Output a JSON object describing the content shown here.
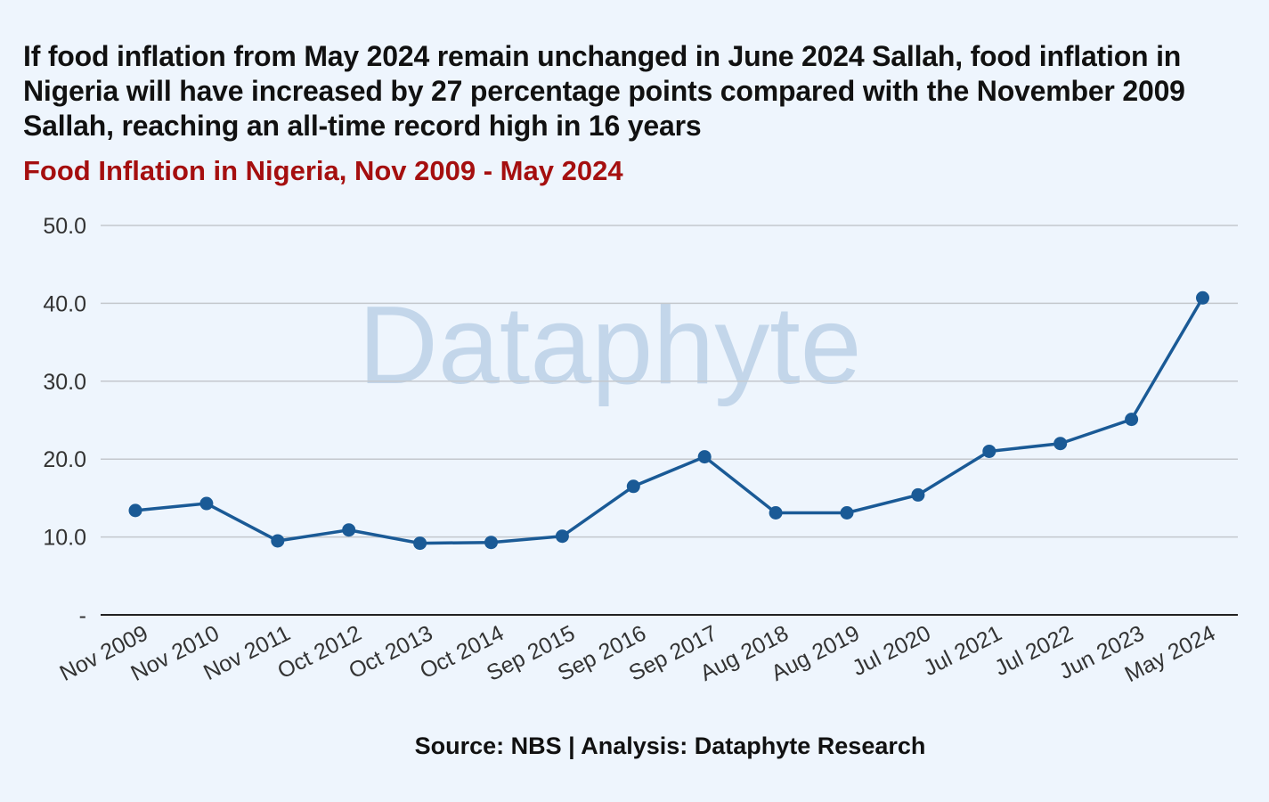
{
  "headline": "If food inflation from May 2024 remain unchanged in June 2024 Sallah, food inflation in Nigeria will have increased by 27 percentage points compared with the November 2009 Sallah, reaching an all-time record high in 16 years",
  "watermark": "Dataphyte",
  "source": "Source: NBS | Analysis: Dataphyte Research",
  "colors": {
    "line": "#1a5a96",
    "title": "#111111",
    "subtitle": "#a50f0f",
    "grid": "#c4c8cd",
    "background": "#eef5fd",
    "watermark": "#c3d6ea"
  },
  "chart_data": {
    "type": "line",
    "title": "Food Inflation in Nigeria, Nov 2009 - May 2024",
    "xlabel": "",
    "ylabel": "",
    "ylim": [
      0,
      50
    ],
    "y_ticks": [
      "-",
      "10.0",
      "20.0",
      "30.0",
      "40.0",
      "50.0"
    ],
    "grid": true,
    "legend": "none",
    "categories": [
      "Nov 2009",
      "Nov 2010",
      "Nov 2011",
      "Oct 2012",
      "Oct 2013",
      "Oct 2014",
      "Sep 2015",
      "Sep 2016",
      "Sep 2017",
      "Aug 2018",
      "Aug 2019",
      "Jul 2020",
      "Jul 2021",
      "Jul 2022",
      "Jun 2023",
      "May 2024"
    ],
    "series": [
      {
        "values": [
          13.4,
          14.3,
          9.5,
          10.9,
          9.2,
          9.3,
          10.1,
          16.5,
          20.3,
          13.1,
          13.1,
          15.4,
          21.0,
          22.0,
          25.1,
          40.7
        ]
      }
    ]
  }
}
